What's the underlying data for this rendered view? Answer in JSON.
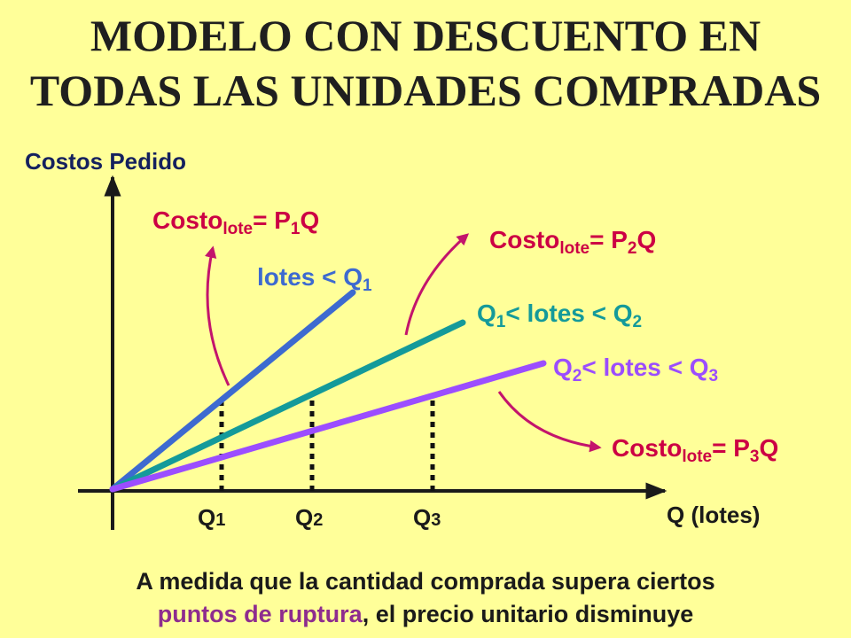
{
  "title": {
    "line1": "MODELO CON DESCUENTO EN",
    "line2": "TODAS LAS UNIDADES COMPRADAS"
  },
  "axes": {
    "y_label": "Costos Pedido",
    "x_label": "Q (lotes)"
  },
  "breakpoints": [
    {
      "base": "Q",
      "sub": "1"
    },
    {
      "base": "Q",
      "sub": "2"
    },
    {
      "base": "Q",
      "sub": "3"
    }
  ],
  "lines": [
    {
      "label_pre": "lotes < Q",
      "label_sub": "1",
      "color": "#3d6ad0"
    },
    {
      "label_pre_q": "Q",
      "label_pre_sub": "1",
      "label_mid": "< lotes < Q",
      "label_sub": "2",
      "color": "#149a9a"
    },
    {
      "label_pre_q": "Q",
      "label_pre_sub": "2",
      "label_mid": "< lotes < Q",
      "label_sub": "3",
      "color": "#9b4dff"
    }
  ],
  "cost_labels": [
    {
      "word": "Costo",
      "sub": "lote",
      "eq": "= P",
      "psub": "1",
      "end": "Q"
    },
    {
      "word": "Costo",
      "sub": "lote",
      "eq": "= P",
      "psub": "2",
      "end": "Q"
    },
    {
      "word": "Costo",
      "sub": "lote",
      "eq": "= P",
      "psub": "3",
      "end": "Q"
    }
  ],
  "colors": {
    "background": "#ffff99",
    "cost_label": "#cc0044",
    "axis_label": "#15215e",
    "arrow": "#c3146c"
  },
  "footer": {
    "line1": "A medida que la cantidad comprada supera ciertos",
    "line2_highlight": "puntos de ruptura",
    "line2_rest": ", el precio unitario disminuye"
  }
}
